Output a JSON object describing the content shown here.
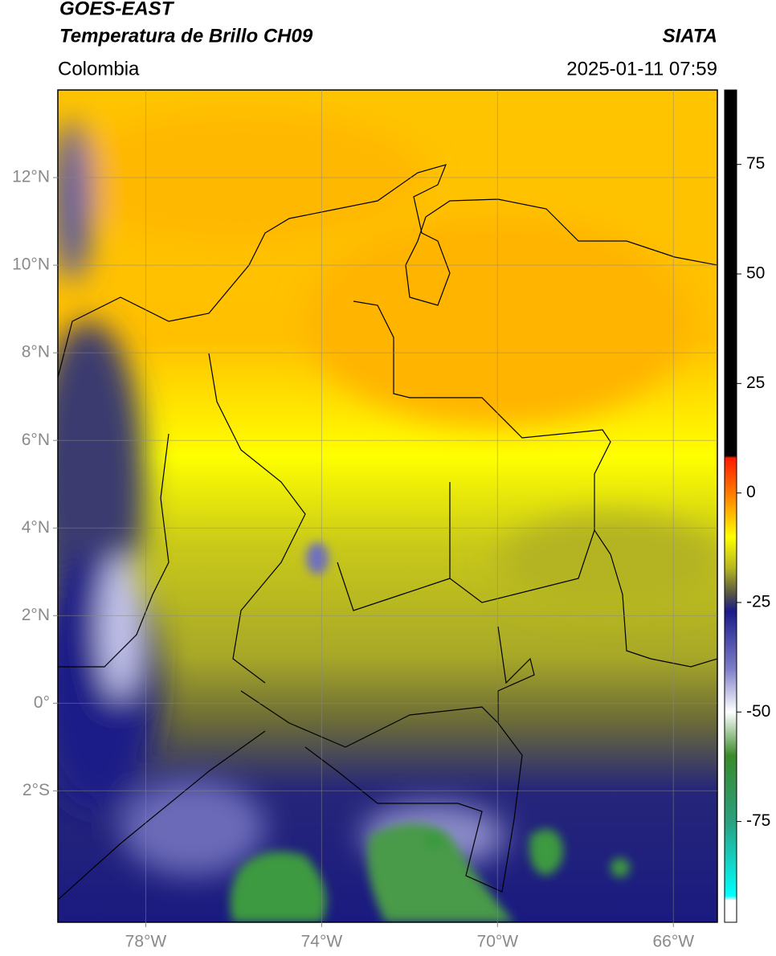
{
  "header": {
    "title": "GOES-EAST",
    "subtitle": "Temperatura de Brillo CH09",
    "source": "SIATA",
    "region": "Colombia",
    "datetime": "2025-01-11 07:59"
  },
  "map": {
    "xlim": [
      -80,
      -65
    ],
    "ylim": [
      -5,
      14
    ],
    "xticks": [
      {
        "value": -78,
        "label": "78°W"
      },
      {
        "value": -74,
        "label": "74°W"
      },
      {
        "value": -70,
        "label": "70°W"
      },
      {
        "value": -66,
        "label": "66°W"
      }
    ],
    "yticks": [
      {
        "value": 12,
        "label": "12°N"
      },
      {
        "value": 10,
        "label": "10°N"
      },
      {
        "value": 8,
        "label": "8°N"
      },
      {
        "value": 6,
        "label": "6°N"
      },
      {
        "value": 4,
        "label": "4°N"
      },
      {
        "value": 2,
        "label": "2°N"
      },
      {
        "value": 0,
        "label": "0°"
      },
      {
        "value": -2,
        "label": "2°S"
      }
    ],
    "grid": true
  },
  "colorbar": {
    "lim": [
      -98,
      92
    ],
    "ticks": [
      75,
      50,
      25,
      0,
      -25,
      -50,
      -75
    ],
    "stops": [
      [
        92,
        "#000000"
      ],
      [
        8.5,
        "#000000"
      ],
      [
        8,
        "#ff1a00"
      ],
      [
        0,
        "#ff7a00"
      ],
      [
        -10,
        "#ffff00"
      ],
      [
        -17,
        "#b8b820"
      ],
      [
        -23,
        "#555545"
      ],
      [
        -27,
        "#1a1a8a"
      ],
      [
        -40,
        "#7c7cc8"
      ],
      [
        -50,
        "#ffffff"
      ],
      [
        -60,
        "#3a8a2a"
      ],
      [
        -75,
        "#2aa080"
      ],
      [
        -92,
        "#00ffff"
      ],
      [
        -93,
        "#ffffff"
      ],
      [
        -98,
        "#ffffff"
      ]
    ]
  }
}
